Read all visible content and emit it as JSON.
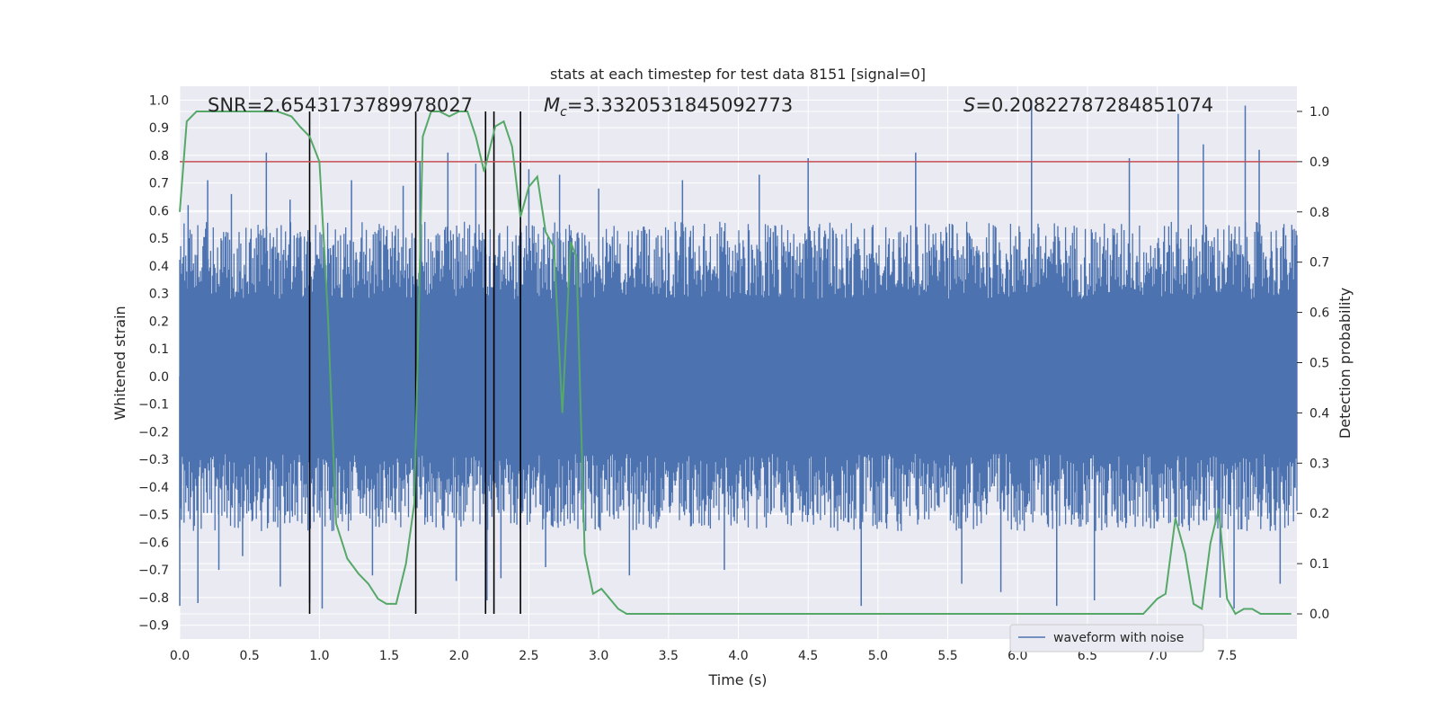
{
  "chart_data": {
    "type": "line",
    "title": "stats at each timestep for test data 8151 [signal=0]",
    "xlabel": "Time (s)",
    "ylabel_left": "Whitened strain",
    "ylabel_right": "Detection probability",
    "xlim": [
      0.0,
      8.0
    ],
    "ylim_left": [
      -0.95,
      1.05
    ],
    "ylim_right": [
      -0.05,
      1.05
    ],
    "x_ticks": [
      "0.0",
      "0.5",
      "1.0",
      "1.5",
      "2.0",
      "2.5",
      "3.0",
      "3.5",
      "4.0",
      "4.5",
      "5.0",
      "5.5",
      "6.0",
      "6.5",
      "7.0",
      "7.5"
    ],
    "y_left_ticks": [
      "1.0",
      "0.9",
      "0.8",
      "0.7",
      "0.6",
      "0.5",
      "0.4",
      "0.3",
      "0.2",
      "0.1",
      "0.0",
      "−0.1",
      "−0.2",
      "−0.3",
      "−0.4",
      "−0.5",
      "−0.6",
      "−0.7",
      "−0.8",
      "−0.9"
    ],
    "y_right_ticks": [
      "1.0",
      "0.9",
      "0.8",
      "0.7",
      "0.6",
      "0.5",
      "0.4",
      "0.3",
      "0.2",
      "0.1",
      "0.0"
    ],
    "annotations": {
      "snr": "SNR=2.6543173789978027",
      "mc_symbol": "M",
      "mc_sub": "c",
      "mc_value": "=3.3320531845092773",
      "s_symbol": "S",
      "s_value": "=0.20822787284851074"
    },
    "threshold": {
      "value": 0.9,
      "axis": "right",
      "color": "#c44e52"
    },
    "vertical_lines": [
      0.93,
      1.69,
      2.19,
      2.25,
      2.44
    ],
    "legend": {
      "entries": [
        "waveform with noise"
      ],
      "placement": "lower-right"
    },
    "grid": true,
    "colors": {
      "waveform": "#4c72b0",
      "probability": "#55a868",
      "vlines": "#000000",
      "background": "#eaeaf2",
      "grid": "#ffffff"
    },
    "series": [
      {
        "name": "waveform with noise",
        "axis": "left",
        "description_values": "dense noise, envelope approx ±0.3 with spikes",
        "spikes": [
          [
            0.0,
            -0.83
          ],
          [
            0.06,
            0.62
          ],
          [
            0.13,
            -0.82
          ],
          [
            0.2,
            0.71
          ],
          [
            0.28,
            -0.7
          ],
          [
            0.37,
            0.66
          ],
          [
            0.45,
            -0.65
          ],
          [
            0.62,
            0.81
          ],
          [
            0.72,
            -0.76
          ],
          [
            0.79,
            0.64
          ],
          [
            0.93,
            -0.82
          ],
          [
            1.02,
            -0.84
          ],
          [
            1.23,
            0.71
          ],
          [
            1.38,
            -0.72
          ],
          [
            1.6,
            0.69
          ],
          [
            1.72,
            0.78
          ],
          [
            1.92,
            0.81
          ],
          [
            1.98,
            -0.74
          ],
          [
            2.12,
            0.77
          ],
          [
            2.2,
            -0.81
          ],
          [
            2.3,
            -0.73
          ],
          [
            2.5,
            0.75
          ],
          [
            2.62,
            -0.69
          ],
          [
            2.72,
            0.73
          ],
          [
            3.0,
            0.68
          ],
          [
            3.22,
            -0.72
          ],
          [
            3.6,
            0.71
          ],
          [
            3.9,
            -0.7
          ],
          [
            4.15,
            0.73
          ],
          [
            4.5,
            0.79
          ],
          [
            4.88,
            -0.83
          ],
          [
            5.27,
            0.81
          ],
          [
            5.6,
            -0.75
          ],
          [
            5.88,
            -0.78
          ],
          [
            6.1,
            1.0
          ],
          [
            6.28,
            -0.83
          ],
          [
            6.55,
            -0.81
          ],
          [
            6.8,
            0.79
          ],
          [
            7.15,
            0.95
          ],
          [
            7.33,
            0.84
          ],
          [
            7.45,
            -0.8
          ],
          [
            7.55,
            -0.84
          ],
          [
            7.63,
            0.98
          ],
          [
            7.73,
            0.82
          ],
          [
            7.88,
            -0.75
          ]
        ]
      },
      {
        "name": "",
        "axis": "right",
        "x": [
          0.0,
          0.05,
          0.12,
          0.2,
          0.3,
          0.4,
          0.5,
          0.6,
          0.7,
          0.8,
          0.86,
          0.93,
          1.0,
          1.06,
          1.12,
          1.2,
          1.28,
          1.35,
          1.42,
          1.48,
          1.55,
          1.62,
          1.68,
          1.74,
          1.8,
          1.86,
          1.93,
          2.0,
          2.06,
          2.12,
          2.18,
          2.26,
          2.32,
          2.38,
          2.44,
          2.5,
          2.56,
          2.62,
          2.68,
          2.74,
          2.8,
          2.84,
          2.9,
          2.96,
          3.02,
          3.08,
          3.14,
          3.2,
          3.3,
          3.5,
          3.8,
          4.0,
          4.5,
          5.0,
          5.5,
          5.8,
          6.0,
          6.2,
          6.4,
          6.6,
          6.8,
          6.9,
          7.0,
          7.06,
          7.13,
          7.2,
          7.26,
          7.32,
          7.38,
          7.44,
          7.5,
          7.56,
          7.62,
          7.68,
          7.74,
          7.8,
          7.86,
          7.92,
          7.96
        ],
        "values": [
          0.8,
          0.98,
          1.0,
          1.0,
          1.0,
          1.0,
          1.0,
          1.0,
          1.0,
          0.99,
          0.97,
          0.95,
          0.9,
          0.6,
          0.18,
          0.11,
          0.08,
          0.06,
          0.03,
          0.02,
          0.02,
          0.1,
          0.22,
          0.95,
          1.0,
          1.0,
          0.99,
          1.0,
          1.0,
          0.95,
          0.88,
          0.97,
          0.98,
          0.93,
          0.79,
          0.85,
          0.87,
          0.76,
          0.73,
          0.4,
          0.74,
          0.71,
          0.12,
          0.04,
          0.05,
          0.03,
          0.01,
          0.0,
          0.0,
          0.0,
          0.0,
          0.0,
          0.0,
          0.0,
          0.0,
          0.0,
          0.0,
          0.0,
          0.0,
          0.0,
          0.0,
          0.0,
          0.03,
          0.04,
          0.19,
          0.12,
          0.02,
          0.01,
          0.14,
          0.21,
          0.03,
          0.0,
          0.01,
          0.01,
          0.0,
          0.0,
          0.0,
          0.0,
          0.0
        ]
      }
    ]
  }
}
